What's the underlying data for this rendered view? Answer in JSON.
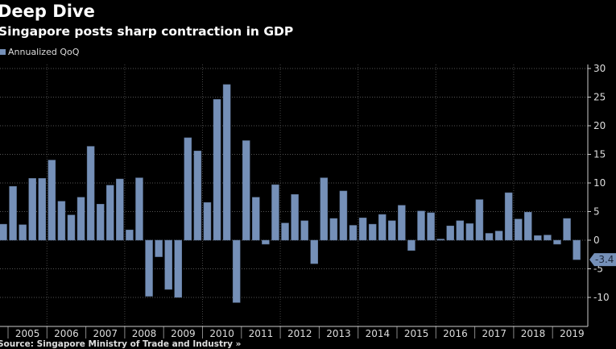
{
  "header": {
    "title": "Deep Dive",
    "subtitle": "Singapore posts sharp contraction in GDP"
  },
  "footer": {
    "source": "Source: Singapore Ministry of Trade and Industry »"
  },
  "chart_data": {
    "type": "bar",
    "title": "Deep Dive",
    "subtitle": "Singapore posts sharp contraction in GDP",
    "legend": [
      "Annualized QoQ"
    ],
    "legend_position": "top-left",
    "bar_color": "#7590b8",
    "series": [
      {
        "name": "Annualized QoQ",
        "values": [
          2.8,
          9.4,
          2.7,
          10.8,
          10.8,
          14.0,
          6.8,
          4.4,
          7.5,
          16.4,
          6.3,
          9.6,
          10.7,
          1.8,
          10.9,
          -9.8,
          -2.9,
          -8.6,
          -10.0,
          17.9,
          15.6,
          6.6,
          24.6,
          27.2,
          -10.9,
          17.4,
          7.5,
          -0.7,
          9.7,
          3.0,
          8.0,
          3.4,
          -4.1,
          10.9,
          3.8,
          8.6,
          2.6,
          3.9,
          2.8,
          4.5,
          3.4,
          6.1,
          -1.8,
          5.1,
          4.8,
          0.2,
          2.5,
          3.4,
          2.9,
          7.1,
          1.2,
          1.6,
          8.3,
          3.7,
          4.9,
          0.8,
          0.9,
          -0.7,
          3.8,
          -3.4
        ]
      }
    ],
    "x_tick_labels": [
      "2005",
      "2006",
      "2007",
      "2008",
      "2009",
      "2010",
      "2011",
      "2012",
      "2013",
      "2014",
      "2015",
      "2016",
      "2017",
      "2018",
      "2019"
    ],
    "y_ticks": [
      30,
      25,
      20,
      15,
      10,
      5,
      0,
      -5,
      -10
    ],
    "y_tick_labels": [
      "30",
      "25",
      "20",
      "15",
      "10",
      "5",
      "0",
      "-5",
      "-10"
    ],
    "ylim": [
      -15,
      30
    ],
    "last_value_label": "-3.4",
    "grid": true,
    "y_axis_side": "right"
  }
}
